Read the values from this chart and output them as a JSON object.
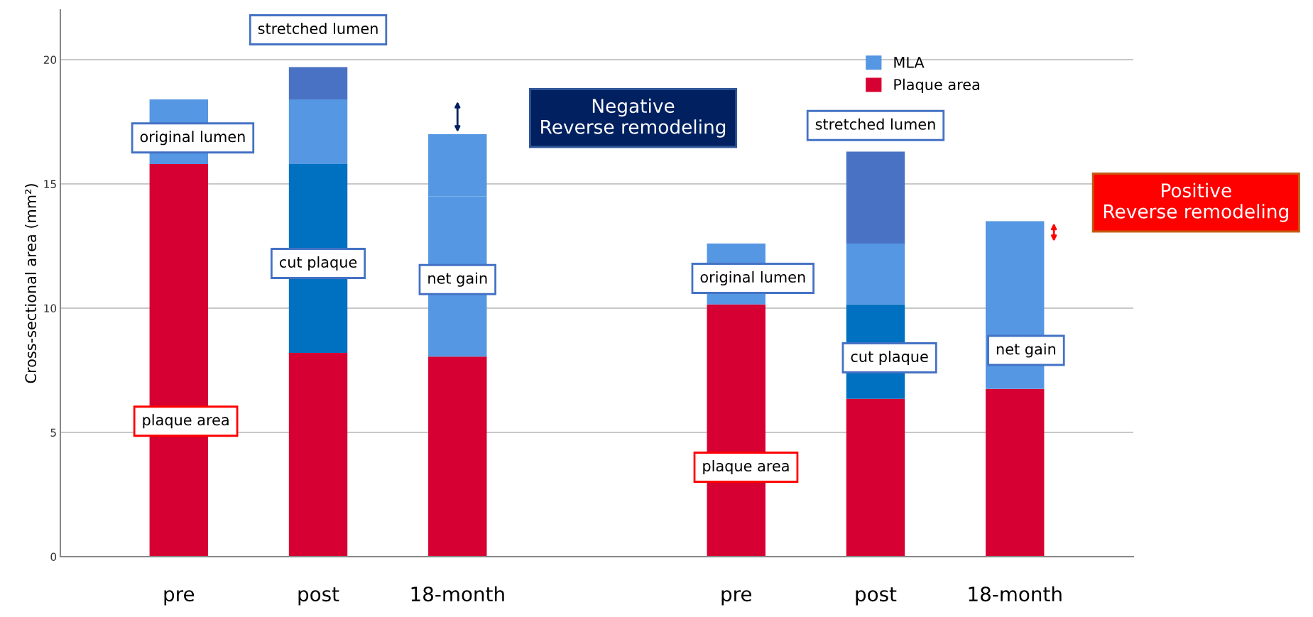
{
  "chart_data": {
    "type": "bar",
    "stacked": true,
    "categories": [
      "pre",
      "post",
      "18-month",
      null,
      "pre",
      "post",
      "18-month"
    ],
    "ylabel": "Cross-sectional area (mm²)",
    "ylim": [
      0,
      22
    ],
    "yticks": [
      0,
      5,
      10,
      15,
      20
    ],
    "grid": "y",
    "legend": "top right",
    "series": [
      {
        "name": "Plaque area",
        "color": "#d60032",
        "values": [
          15.8,
          8.2,
          8.05,
          null,
          10.15,
          6.35,
          6.75
        ]
      },
      {
        "color": "#0070c0",
        "values": [
          null,
          7.6,
          null,
          null,
          null,
          3.8,
          null
        ]
      },
      {
        "name": "MLA",
        "color": "#5597e2",
        "values": [
          2.6,
          2.6,
          6.45,
          null,
          2.45,
          2.45,
          4.25
        ]
      },
      {
        "color": "#5597e2",
        "values": [
          null,
          null,
          2.5,
          null,
          null,
          null,
          2.5
        ]
      },
      {
        "color": "#4a72c4",
        "values": [
          null,
          1.3,
          null,
          null,
          null,
          3.7,
          null
        ]
      }
    ],
    "annotations": [
      "stretched lumen",
      "original lumen",
      "cut plaque",
      "net gain",
      "plaque area",
      "Negative\nReverse remodeling",
      "original lumen",
      "stretched lumen",
      "cut plaque",
      "net gain",
      "plaque area",
      "Positive\nReverse remodeling"
    ]
  }
}
